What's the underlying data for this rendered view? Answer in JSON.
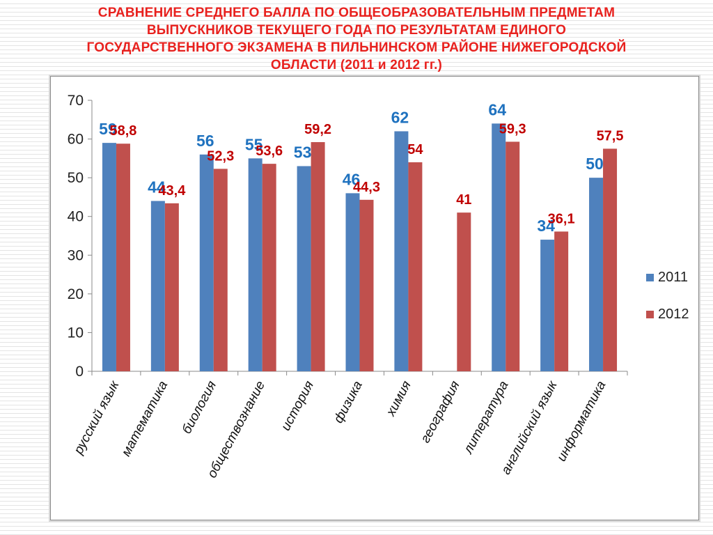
{
  "title_lines": [
    "СРАВНЕНИЕ СРЕДНЕГО БАЛЛА ПО ОБЩЕОБРАЗОВАТЕЛЬНЫМ ПРЕДМЕТАМ",
    "ВЫПУСКНИКОВ ТЕКУЩЕГО ГОДА ПО РЕЗУЛЬТАТАМ ЕДИНОГО",
    "ГОСУДАРСТВЕННОГО ЭКЗАМЕНА В ПИЛЬНИНСКОМ РАЙОНЕ НИЖЕГОРОДСКОЙ",
    "ОБЛАСТИ (2011 и 2012 гг.)"
  ],
  "chart_data": {
    "type": "bar",
    "title": "СРАВНЕНИЕ СРЕДНЕГО БАЛЛА ПО ОБЩЕОБРАЗОВАТЕЛЬНЫМ ПРЕДМЕТАМ ВЫПУСКНИКОВ ТЕКУЩЕГО ГОДА ПО РЕЗУЛЬТАТАМ ЕДИНОГО ГОСУДАРСТВЕННОГО ЭКЗАМЕНА В ПИЛЬНИНСКОМ РАЙОНЕ НИЖЕГОРОДСКОЙ ОБЛАСТИ (2011 и 2012 гг.)",
    "categories": [
      "русский язык",
      "математика",
      "биология",
      "обществознание",
      "история",
      "физика",
      "химия",
      "география",
      "литература",
      "английский язык",
      "информатика"
    ],
    "series": [
      {
        "name": "2011",
        "color": "#4f81bd",
        "label_color": "#1f72bf",
        "values": [
          59,
          44,
          56,
          55,
          53,
          46,
          62,
          null,
          64,
          34,
          50
        ],
        "labels": [
          "59",
          "44",
          "56",
          "55",
          "53",
          "46",
          "62",
          "",
          "64",
          "34",
          "50"
        ]
      },
      {
        "name": "2012",
        "color": "#c0504d",
        "label_color": "#c00000",
        "values": [
          58.8,
          43.4,
          52.3,
          53.6,
          59.2,
          44.3,
          54,
          41,
          59.3,
          36.1,
          57.5
        ],
        "labels": [
          "58,8",
          "43,4",
          "52,3",
          "53,6",
          "59,2",
          "44,3",
          "54",
          "41",
          "59,3",
          "36,1",
          "57,5"
        ]
      }
    ],
    "ylim": [
      0,
      70
    ],
    "yticks": [
      0,
      10,
      20,
      30,
      40,
      50,
      60,
      70
    ],
    "xlabel": "",
    "ylabel": "",
    "grid": false,
    "legend": "right"
  }
}
